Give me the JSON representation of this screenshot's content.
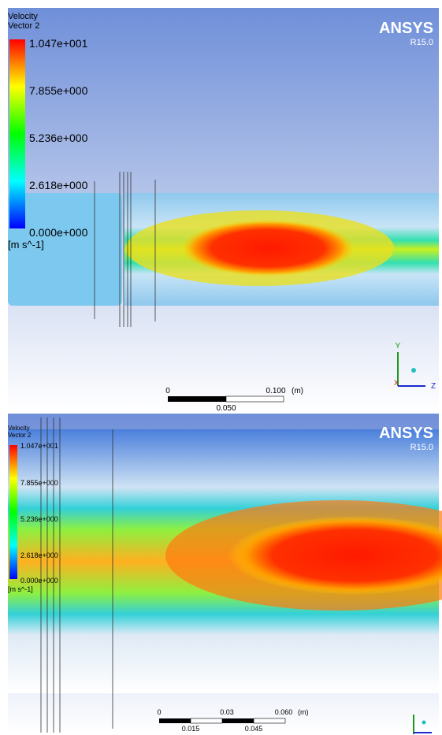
{
  "panels": [
    {
      "title": [
        "Velocity",
        "Vector 2"
      ],
      "legend": [
        "1.047e+001",
        "7.855e+000",
        "5.236e+000",
        "2.618e+000",
        "0.000e+000"
      ],
      "unit": "[m s^-1]",
      "brand": "ANSYS",
      "version": "R15.0",
      "scale_top": [
        "0",
        "0.100",
        "(m)"
      ],
      "scale_bottom": [
        "0.050"
      ],
      "axes": [
        "Y",
        "X",
        "Z"
      ]
    },
    {
      "title": [
        "Velocity",
        "Vector 2"
      ],
      "legend": [
        "1.047e+001",
        "7.855e+000",
        "5.236e+000",
        "2.618e+000",
        "0.000e+000"
      ],
      "unit": "[m s^-1]",
      "brand": "ANSYS",
      "version": "R15.0",
      "scale_top": [
        "0",
        "0.03",
        "0.060",
        "(m)"
      ],
      "scale_bottom": [
        "0.015",
        "0.045"
      ]
    }
  ]
}
